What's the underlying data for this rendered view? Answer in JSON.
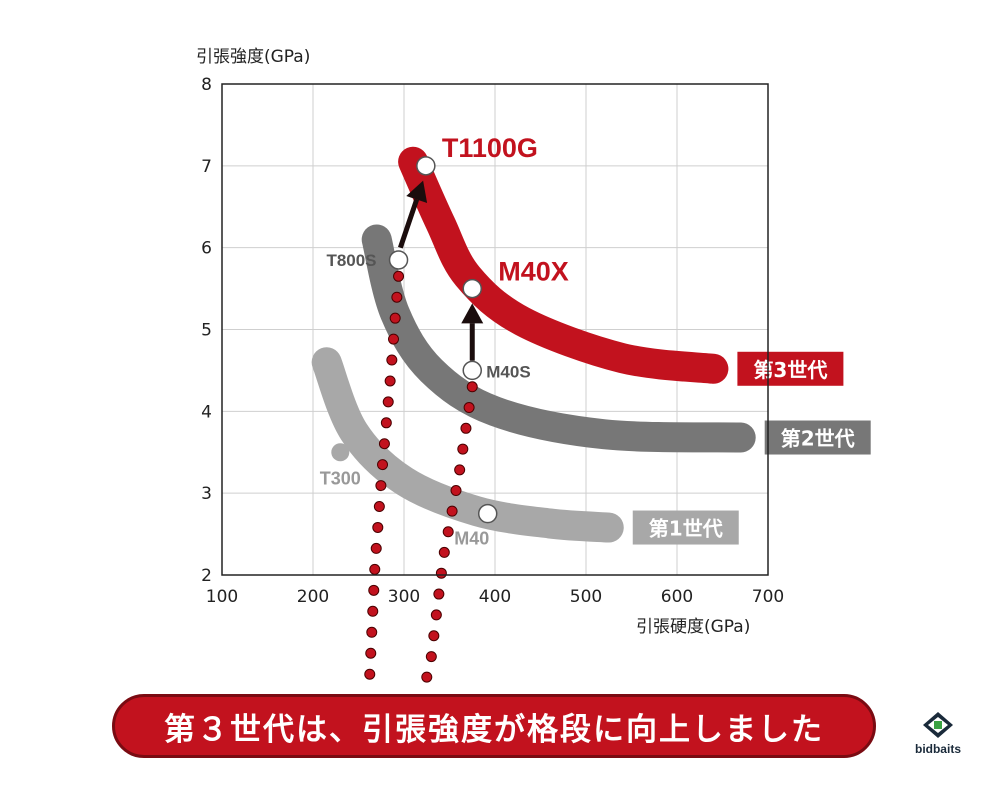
{
  "chart_data": {
    "type": "scatter",
    "ylabel": "引張強度(GPa)",
    "xlabel": "引張硬度(GPa)",
    "xlim": [
      100,
      700
    ],
    "ylim": [
      2,
      8
    ],
    "x_ticks": [
      100,
      200,
      300,
      400,
      500,
      600,
      700
    ],
    "y_ticks": [
      2,
      3,
      4,
      5,
      6,
      7,
      8
    ],
    "grid": true,
    "colors": {
      "gen1": "#a8a8a8",
      "gen2": "#777777",
      "gen3": "#c2121e",
      "dots": "#c2121e"
    },
    "generations": [
      {
        "name": "第1世代",
        "color": "#a8a8a8",
        "label_color": "#a8a8a8",
        "curve": [
          [
            215,
            4.6
          ],
          [
            245,
            3.75
          ],
          [
            300,
            3.15
          ],
          [
            380,
            2.78
          ],
          [
            460,
            2.63
          ],
          [
            525,
            2.58
          ]
        ]
      },
      {
        "name": "第2世代",
        "color": "#777777",
        "label_color": "#777777",
        "curve": [
          [
            270,
            6.1
          ],
          [
            290,
            5.2
          ],
          [
            330,
            4.5
          ],
          [
            400,
            4.0
          ],
          [
            520,
            3.72
          ],
          [
            670,
            3.68
          ]
        ]
      },
      {
        "name": "第3世代",
        "color": "#c2121e",
        "label_color": "#c2121e",
        "curve": [
          [
            310,
            7.05
          ],
          [
            340,
            6.3
          ],
          [
            370,
            5.65
          ],
          [
            430,
            5.1
          ],
          [
            540,
            4.65
          ],
          [
            640,
            4.52
          ]
        ]
      }
    ],
    "points": [
      {
        "name": "T300",
        "x": 230,
        "y": 3.5,
        "style": "gray-dot",
        "label_color": "#999999"
      },
      {
        "name": "M40",
        "x": 392,
        "y": 2.75,
        "style": "white-dot",
        "label_color": "#999999"
      },
      {
        "name": "T800S",
        "x": 294,
        "y": 5.85,
        "style": "white-dot",
        "label_color": "#555555"
      },
      {
        "name": "M40S",
        "x": 375,
        "y": 4.5,
        "style": "white-dot",
        "label_color": "#555555"
      },
      {
        "name": "T1100G",
        "x": 324,
        "y": 7.0,
        "style": "white-dot",
        "label_color": "#c2121e"
      },
      {
        "name": "M40X",
        "x": 375,
        "y": 5.5,
        "style": "white-dot",
        "label_color": "#c2121e"
      }
    ],
    "arrows": [
      {
        "from": [
          296,
          6.0
        ],
        "to": [
          321,
          6.82
        ]
      },
      {
        "from": [
          375,
          4.62
        ],
        "to": [
          375,
          5.32
        ]
      }
    ],
    "dotted_paths": [
      [
        [
          294,
          5.65
        ],
        [
          285,
          4.4
        ],
        [
          276,
          3.3
        ],
        [
          268,
          2.1
        ],
        [
          262,
          0.7
        ]
      ],
      [
        [
          375,
          4.3
        ],
        [
          360,
          3.2
        ],
        [
          343,
          2.2
        ],
        [
          330,
          1.0
        ],
        [
          322,
          0.6
        ]
      ]
    ]
  },
  "banner": {
    "text": "第３世代は、引張強度が格段に向上しました"
  },
  "logo": {
    "text": "bidbaits"
  }
}
